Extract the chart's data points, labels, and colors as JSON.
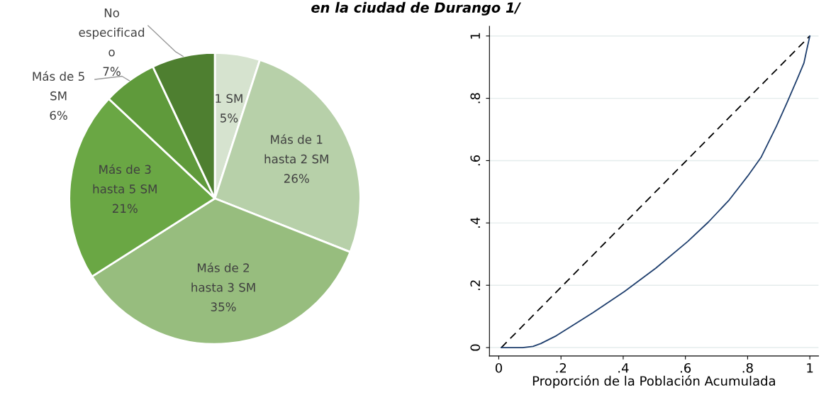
{
  "chart_data": [
    {
      "type": "pie",
      "title": "en la ciudad de Durango 1/",
      "categories": [
        "1 SM",
        "Más de 1\nhasta 2 SM",
        "Más de 2\nhasta 3 SM",
        "Más de 3\nhasta 5 SM",
        "Más de 5\nSM",
        "No\nespecificad\no"
      ],
      "values": [
        5,
        26,
        35,
        21,
        6,
        7
      ],
      "value_labels": [
        "5%",
        "26%",
        "35%",
        "21%",
        "6%",
        "7%"
      ],
      "colors": [
        "#d6e3cf",
        "#b7d0a9",
        "#97bd7e",
        "#6aa744",
        "#5f9a3b",
        "#4e7f30"
      ],
      "legend": false
    },
    {
      "type": "line",
      "xlabel": "Proporción de la Población Acumulada",
      "grid": "y",
      "legend": false,
      "xlim": [
        -0.03,
        1.028
      ],
      "ylim": [
        -0.027,
        1.031
      ],
      "xticks": [
        {
          "value": 0,
          "label": "0"
        },
        {
          "value": 0.2,
          "label": ".2"
        },
        {
          "value": 0.4,
          "label": ".4"
        },
        {
          "value": 0.6,
          "label": ".6"
        },
        {
          "value": 0.8,
          "label": ".8"
        },
        {
          "value": 1,
          "label": "1"
        }
      ],
      "yticks": [
        {
          "value": 0,
          "label": "0"
        },
        {
          "value": 0.2,
          "label": ".2"
        },
        {
          "value": 0.4,
          "label": ".4"
        },
        {
          "value": 0.6,
          "label": ".6"
        },
        {
          "value": 0.8,
          "label": ".8"
        },
        {
          "value": 1,
          "label": "1"
        }
      ],
      "series": [
        {
          "color": "#000000",
          "line_style": "dashed",
          "x": [
            0.008,
            1.0
          ],
          "values": [
            0,
            1.0
          ]
        },
        {
          "color": "#1f3f6e",
          "line_style": "solid",
          "x": [
            0.008,
            0.076,
            0.11,
            0.135,
            0.185,
            0.236,
            0.303,
            0.404,
            0.505,
            0.607,
            0.674,
            0.741,
            0.8,
            0.843,
            0.893,
            0.927,
            0.96,
            0.981,
            0.99,
            1.0
          ],
          "values": [
            0,
            0,
            0.004,
            0.013,
            0.038,
            0.07,
            0.112,
            0.18,
            0.255,
            0.34,
            0.403,
            0.474,
            0.55,
            0.61,
            0.711,
            0.787,
            0.863,
            0.913,
            0.955,
            1.0
          ]
        }
      ]
    }
  ]
}
